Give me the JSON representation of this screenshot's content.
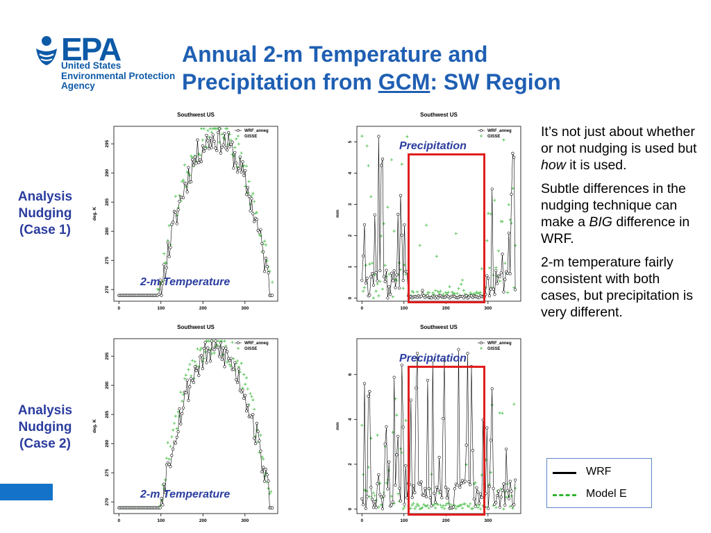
{
  "logo": {
    "word": "EPA",
    "sub_lines": [
      "United States",
      "Environmental Protection",
      "Agency"
    ]
  },
  "title": {
    "line1": "Annual 2-m Temperature and",
    "line2_pre": "Precipitation from ",
    "line2_link": "GCM",
    "line2_post": ":  SW Region"
  },
  "cases": [
    {
      "label_lines": [
        "Analysis",
        "Nudging",
        "(Case 1)"
      ]
    },
    {
      "label_lines": [
        "Analysis",
        "Nudging",
        "(Case 2)"
      ]
    }
  ],
  "overlays": {
    "temperature": "2-m Temperature",
    "precipitation": "Precipitation"
  },
  "notes": {
    "p1_pre": "It’s not just about whether or not nudging is used but ",
    "p1_em": "how",
    "p1_post": " it is used.",
    "p2_pre": "Subtle differences in the nudging technique can make a ",
    "p2_em": "BIG",
    "p2_post": " difference in WRF.",
    "p3": "2-m temperature fairly consistent with both cases, but precipitation is very different."
  },
  "legend": {
    "items": [
      {
        "label": "WRF",
        "style": "solid",
        "color": "#000000"
      },
      {
        "label": "Model E",
        "style": "dashed",
        "color": "#2fb52f"
      }
    ]
  },
  "colors": {
    "title": "#1f5fb3",
    "case_label": "#2a3c9e",
    "highlight_box": "#e01d1d",
    "gisse_marker": "#2fb52f",
    "wrf_marker": "#000000"
  },
  "chart_data": [
    {
      "id": "temp-case1",
      "type": "line",
      "title": "Southwest US",
      "xlabel": "",
      "ylabel": "deg. K",
      "xlim": [
        -12,
        378
      ],
      "ylim": [
        268,
        298
      ],
      "xticks": [
        0,
        100,
        200,
        300
      ],
      "yticks": [
        270,
        275,
        280,
        285,
        290,
        295
      ],
      "series": [
        {
          "name": "WRF_anneg",
          "marker": "circle",
          "line": true,
          "color": "#000000",
          "kind": "temp",
          "seed": 11,
          "bias": 0
        },
        {
          "name": "GISSE",
          "marker": "plus",
          "line": false,
          "color": "#2fb52f",
          "kind": "temp",
          "seed": 23,
          "bias": 1.5
        }
      ],
      "legend": "top-right",
      "grid": false,
      "n_points": 120,
      "x_range": [
        0,
        365
      ]
    },
    {
      "id": "precip-case1",
      "type": "line",
      "title": "Southwest US",
      "xlabel": "",
      "ylabel": "mm",
      "xlim": [
        -12,
        378
      ],
      "ylim": [
        -0.1,
        5.5
      ],
      "xticks": [
        0,
        100,
        200,
        300
      ],
      "yticks": [
        0,
        1,
        2,
        3,
        4,
        5
      ],
      "series": [
        {
          "name": "WRF_anneg",
          "marker": "circle",
          "line": true,
          "color": "#000000",
          "kind": "precip1",
          "seed": 37,
          "bias": 0
        },
        {
          "name": "GISSE",
          "marker": "plus",
          "line": false,
          "color": "#2fb52f",
          "kind": "precip_gcm",
          "seed": 41,
          "bias": 0
        }
      ],
      "legend": "top-right",
      "grid": false,
      "n_points": 120,
      "x_range": [
        0,
        365
      ]
    },
    {
      "id": "temp-case2",
      "type": "line",
      "title": "Southwest US",
      "xlabel": "",
      "ylabel": "deg. K",
      "xlim": [
        -12,
        378
      ],
      "ylim": [
        268,
        298
      ],
      "xticks": [
        0,
        100,
        200,
        300
      ],
      "yticks": [
        270,
        275,
        280,
        285,
        290,
        295
      ],
      "series": [
        {
          "name": "WRF_anneg",
          "marker": "circle",
          "line": true,
          "color": "#000000",
          "kind": "temp",
          "seed": 53,
          "bias": 0
        },
        {
          "name": "GISSE",
          "marker": "plus",
          "line": false,
          "color": "#2fb52f",
          "kind": "temp",
          "seed": 59,
          "bias": 1.5
        }
      ],
      "legend": "top-right",
      "grid": false,
      "n_points": 120,
      "x_range": [
        0,
        365
      ]
    },
    {
      "id": "precip-case2",
      "type": "line",
      "title": "Southwest US",
      "xlabel": "",
      "ylabel": "mm",
      "xlim": [
        -12,
        378
      ],
      "ylim": [
        -0.2,
        7.6
      ],
      "xticks": [
        0,
        100,
        200,
        300
      ],
      "yticks": [
        0,
        2,
        4,
        6
      ],
      "series": [
        {
          "name": "WRF_anneg",
          "marker": "circle",
          "line": true,
          "color": "#000000",
          "kind": "precip2",
          "seed": 67,
          "bias": 0
        },
        {
          "name": "GISSE",
          "marker": "plus",
          "line": false,
          "color": "#2fb52f",
          "kind": "precip_gcm",
          "seed": 71,
          "bias": 0
        }
      ],
      "legend": "top-right",
      "grid": false,
      "n_points": 120,
      "x_range": [
        0,
        365
      ]
    }
  ]
}
